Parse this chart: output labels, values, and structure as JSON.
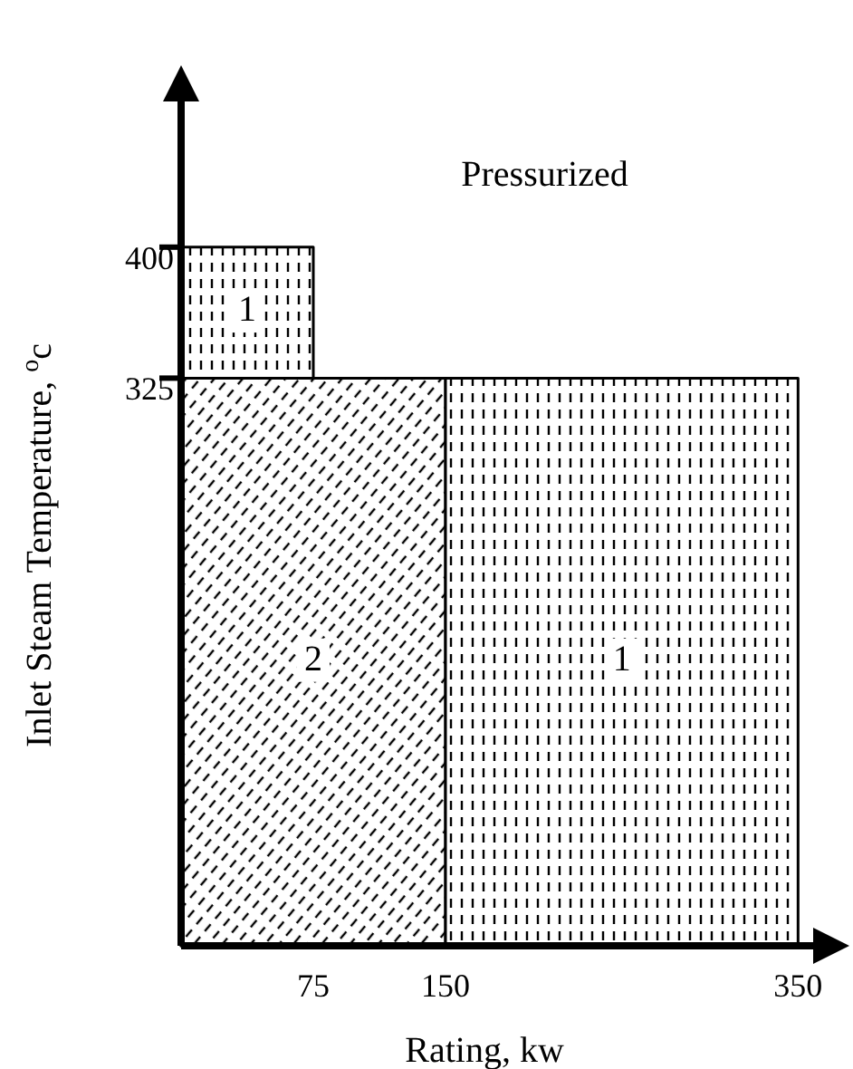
{
  "chart_data": {
    "type": "area",
    "xlabel": "Rating, kw",
    "ylabel": "Inlet Steam Temperature, $^{o}$c",
    "annotations": [
      "Pressurized"
    ],
    "xlim": [
      0,
      375
    ],
    "ylim": [
      0,
      500
    ],
    "xticks": [
      75,
      150,
      350
    ],
    "yticks": [
      325,
      400
    ],
    "series": [
      {
        "name": "1",
        "color": "#000000",
        "x": [
          0,
          75
        ],
        "values": [
          400,
          400
        ]
      },
      {
        "name": "2",
        "color": "#000000",
        "x": [
          0,
          150
        ],
        "values": [
          325,
          325
        ]
      },
      {
        "name": "1",
        "color": "#000000",
        "x": [
          150,
          350
        ],
        "values": [
          325,
          325
        ]
      }
    ]
  }
}
